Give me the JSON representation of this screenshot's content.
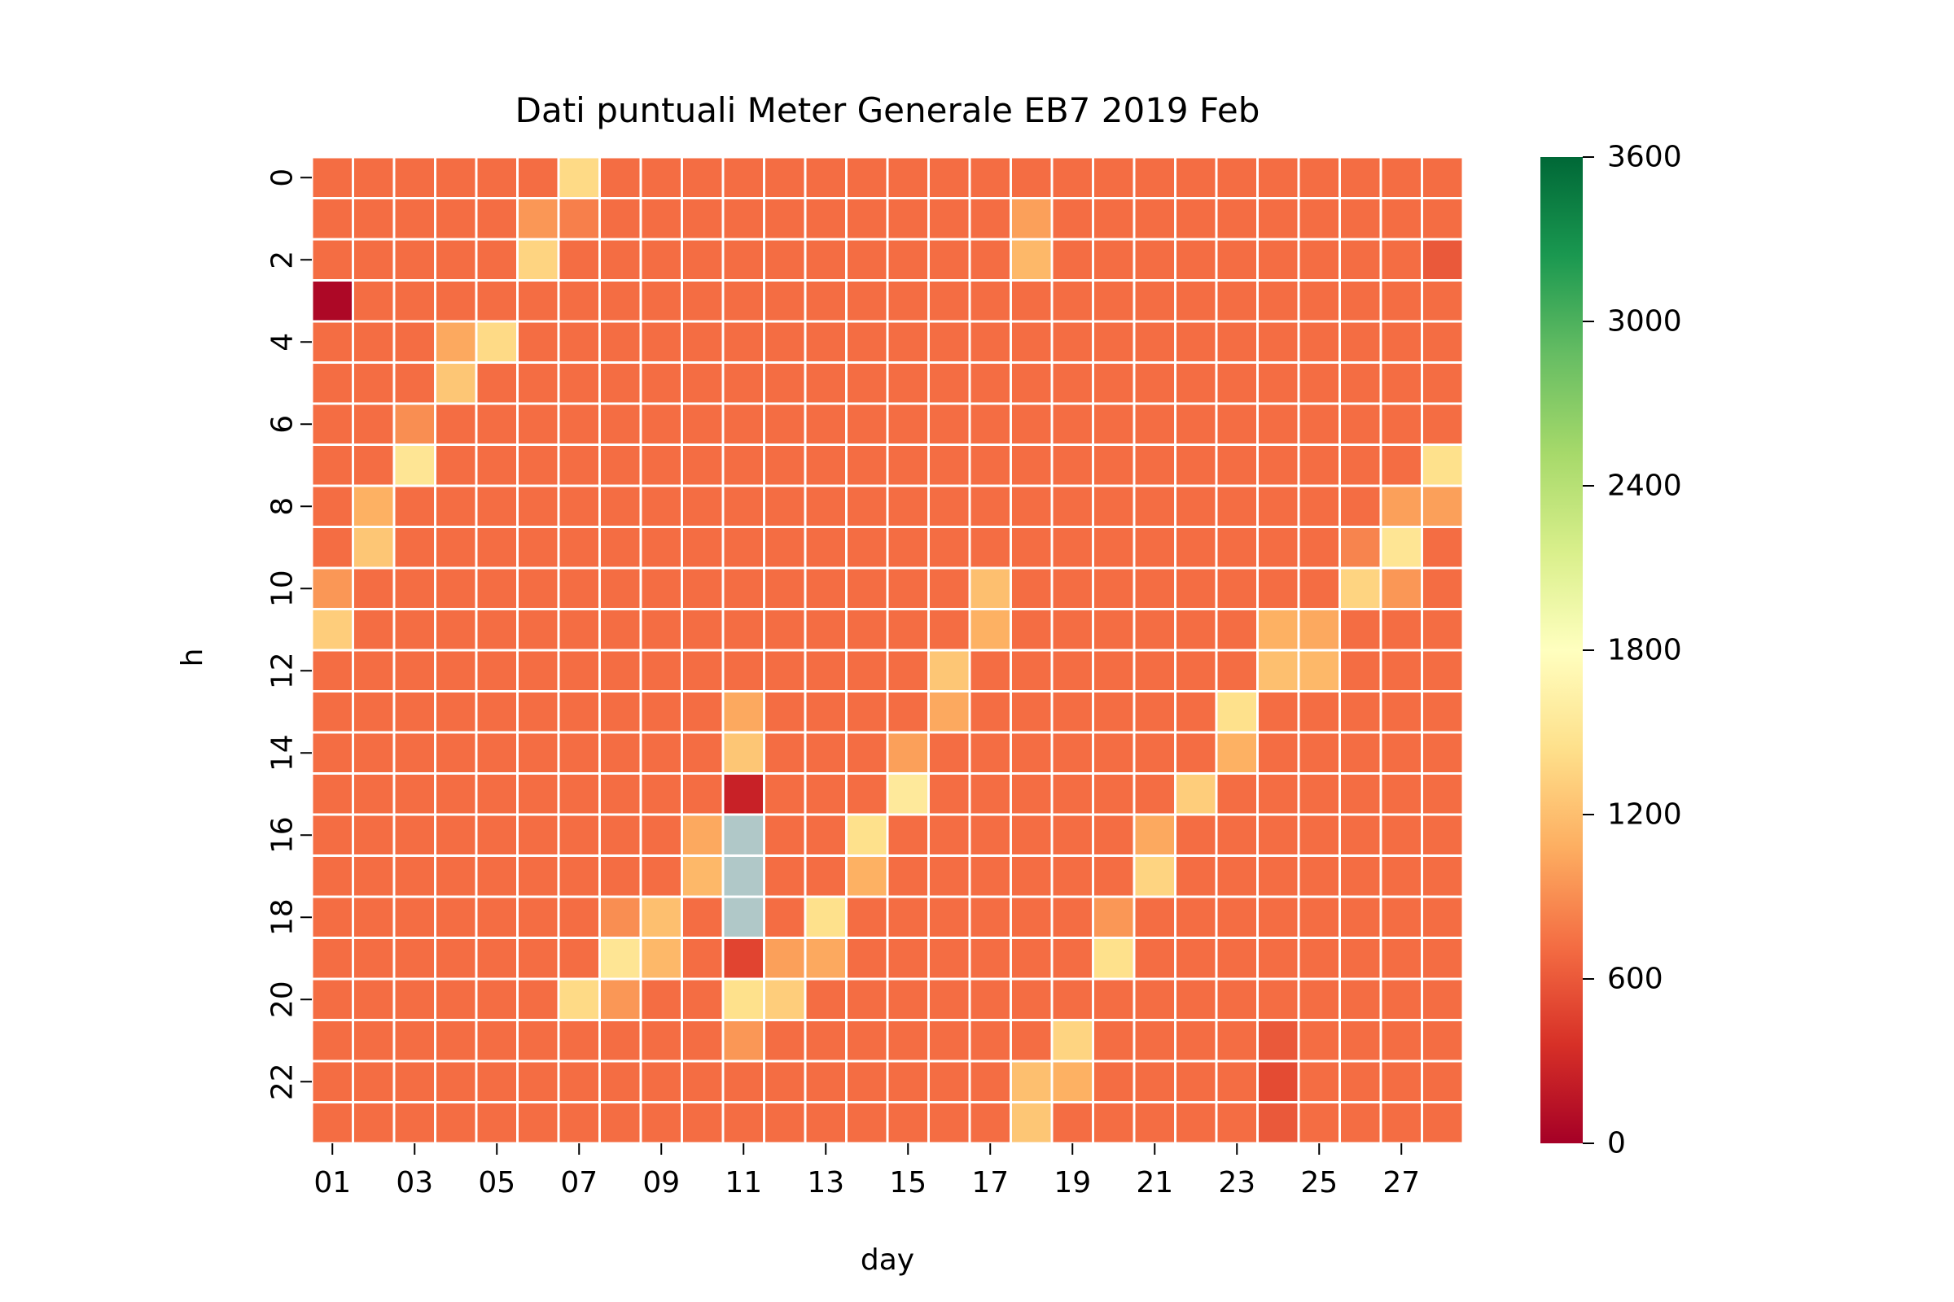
{
  "chart_data": {
    "type": "heatmap",
    "title": "Dati puntuali Meter Generale EB7 2019 Feb",
    "xlabel": "day",
    "ylabel": "h",
    "x_tick_labels": [
      "01",
      "03",
      "05",
      "07",
      "09",
      "11",
      "13",
      "15",
      "17",
      "19",
      "21",
      "23",
      "25",
      "27"
    ],
    "y_tick_labels": [
      "0",
      "2",
      "4",
      "6",
      "8",
      "10",
      "12",
      "14",
      "16",
      "18",
      "20",
      "22"
    ],
    "days": [
      "01",
      "02",
      "03",
      "04",
      "05",
      "06",
      "07",
      "08",
      "09",
      "10",
      "11",
      "12",
      "13",
      "14",
      "15",
      "16",
      "17",
      "18",
      "19",
      "20",
      "21",
      "22",
      "23",
      "24",
      "25",
      "26",
      "27",
      "28"
    ],
    "hours": [
      0,
      1,
      2,
      3,
      4,
      5,
      6,
      7,
      8,
      9,
      10,
      11,
      12,
      13,
      14,
      15,
      16,
      17,
      18,
      19,
      20,
      21,
      22,
      23
    ],
    "colorscale": "RdYlGn",
    "vmin": 0,
    "vmax": 3600,
    "colorbar_ticks": [
      0,
      600,
      1200,
      1800,
      2400,
      3000,
      3600
    ],
    "missing_color": "#b0c8c8",
    "default_value": 720,
    "overrides": [
      {
        "day": "07",
        "h": 0,
        "v": 1400
      },
      {
        "day": "06",
        "h": 1,
        "v": 950
      },
      {
        "day": "07",
        "h": 1,
        "v": 820
      },
      {
        "day": "18",
        "h": 1,
        "v": 1000
      },
      {
        "day": "06",
        "h": 2,
        "v": 1350
      },
      {
        "day": "18",
        "h": 2,
        "v": 1150
      },
      {
        "day": "28",
        "h": 2,
        "v": 600
      },
      {
        "day": "01",
        "h": 3,
        "v": 60
      },
      {
        "day": "04",
        "h": 4,
        "v": 1050
      },
      {
        "day": "05",
        "h": 4,
        "v": 1400
      },
      {
        "day": "04",
        "h": 5,
        "v": 1250
      },
      {
        "day": "03",
        "h": 6,
        "v": 900
      },
      {
        "day": "03",
        "h": 7,
        "v": 1500
      },
      {
        "day": "28",
        "h": 7,
        "v": 1450
      },
      {
        "day": "02",
        "h": 8,
        "v": 1100
      },
      {
        "day": "27",
        "h": 8,
        "v": 1000
      },
      {
        "day": "28",
        "h": 8,
        "v": 1000
      },
      {
        "day": "02",
        "h": 9,
        "v": 1250
      },
      {
        "day": "26",
        "h": 9,
        "v": 850
      },
      {
        "day": "27",
        "h": 9,
        "v": 1500
      },
      {
        "day": "01",
        "h": 10,
        "v": 950
      },
      {
        "day": "17",
        "h": 10,
        "v": 1200
      },
      {
        "day": "26",
        "h": 10,
        "v": 1350
      },
      {
        "day": "27",
        "h": 10,
        "v": 950
      },
      {
        "day": "01",
        "h": 11,
        "v": 1300
      },
      {
        "day": "17",
        "h": 11,
        "v": 1100
      },
      {
        "day": "24",
        "h": 11,
        "v": 1100
      },
      {
        "day": "25",
        "h": 11,
        "v": 1050
      },
      {
        "day": "16",
        "h": 12,
        "v": 1250
      },
      {
        "day": "24",
        "h": 12,
        "v": 1200
      },
      {
        "day": "25",
        "h": 12,
        "v": 1150
      },
      {
        "day": "11",
        "h": 13,
        "v": 1050
      },
      {
        "day": "16",
        "h": 13,
        "v": 1050
      },
      {
        "day": "23",
        "h": 13,
        "v": 1450
      },
      {
        "day": "11",
        "h": 14,
        "v": 1250
      },
      {
        "day": "15",
        "h": 14,
        "v": 1000
      },
      {
        "day": "23",
        "h": 14,
        "v": 1100
      },
      {
        "day": "11",
        "h": 15,
        "v": 250
      },
      {
        "day": "15",
        "h": 15,
        "v": 1550
      },
      {
        "day": "22",
        "h": 15,
        "v": 1300
      },
      {
        "day": "10",
        "h": 16,
        "v": 1050
      },
      {
        "day": "11",
        "h": 16,
        "v": null
      },
      {
        "day": "14",
        "h": 16,
        "v": 1450
      },
      {
        "day": "21",
        "h": 16,
        "v": 1050
      },
      {
        "day": "10",
        "h": 17,
        "v": 1150
      },
      {
        "day": "11",
        "h": 17,
        "v": null
      },
      {
        "day": "14",
        "h": 17,
        "v": 1100
      },
      {
        "day": "21",
        "h": 17,
        "v": 1350
      },
      {
        "day": "08",
        "h": 18,
        "v": 900
      },
      {
        "day": "09",
        "h": 18,
        "v": 1200
      },
      {
        "day": "11",
        "h": 18,
        "v": null
      },
      {
        "day": "13",
        "h": 18,
        "v": 1450
      },
      {
        "day": "20",
        "h": 18,
        "v": 950
      },
      {
        "day": "08",
        "h": 19,
        "v": 1500
      },
      {
        "day": "09",
        "h": 19,
        "v": 1150
      },
      {
        "day": "11",
        "h": 19,
        "v": 480
      },
      {
        "day": "12",
        "h": 19,
        "v": 1000
      },
      {
        "day": "13",
        "h": 19,
        "v": 1050
      },
      {
        "day": "20",
        "h": 19,
        "v": 1450
      },
      {
        "day": "07",
        "h": 20,
        "v": 1400
      },
      {
        "day": "08",
        "h": 20,
        "v": 950
      },
      {
        "day": "11",
        "h": 20,
        "v": 1450
      },
      {
        "day": "12",
        "h": 20,
        "v": 1300
      },
      {
        "day": "11",
        "h": 21,
        "v": 950
      },
      {
        "day": "19",
        "h": 21,
        "v": 1350
      },
      {
        "day": "24",
        "h": 21,
        "v": 600
      },
      {
        "day": "18",
        "h": 22,
        "v": 1200
      },
      {
        "day": "19",
        "h": 22,
        "v": 1100
      },
      {
        "day": "24",
        "h": 22,
        "v": 520
      },
      {
        "day": "18",
        "h": 23,
        "v": 1250
      },
      {
        "day": "24",
        "h": 23,
        "v": 600
      }
    ]
  }
}
